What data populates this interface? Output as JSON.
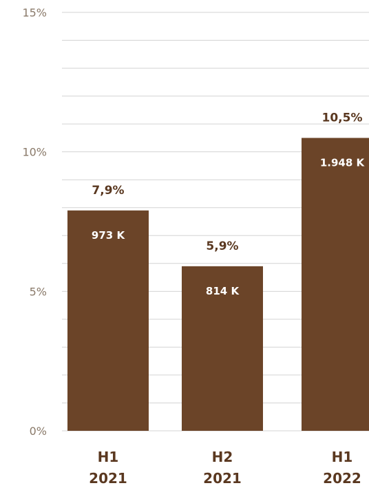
{
  "chart_data": {
    "type": "bar",
    "categories": [
      [
        "H1",
        "2021"
      ],
      [
        "H2",
        "2021"
      ],
      [
        "H1",
        "2022"
      ]
    ],
    "values": [
      7.9,
      5.9,
      10.5
    ],
    "value_labels": [
      "7,9%",
      "5,9%",
      "10,5%"
    ],
    "count_labels": [
      "973 K",
      "814 K",
      "1.948 K"
    ],
    "yticks": [
      {
        "value": 0,
        "label": "0%"
      },
      {
        "value": 5,
        "label": "5%"
      },
      {
        "value": 10,
        "label": "10%"
      },
      {
        "value": 15,
        "label": "15%"
      }
    ],
    "ylim": [
      0,
      15
    ],
    "grid": true,
    "title": "",
    "xlabel": "",
    "ylabel": "",
    "colors": {
      "bar": "#6b4428",
      "grid": "#d3d3d3",
      "axis_label": "#8a7a6a",
      "value_label": "#5a3820",
      "inner_label": "#ffffff",
      "category_label": "#5a3820"
    }
  }
}
